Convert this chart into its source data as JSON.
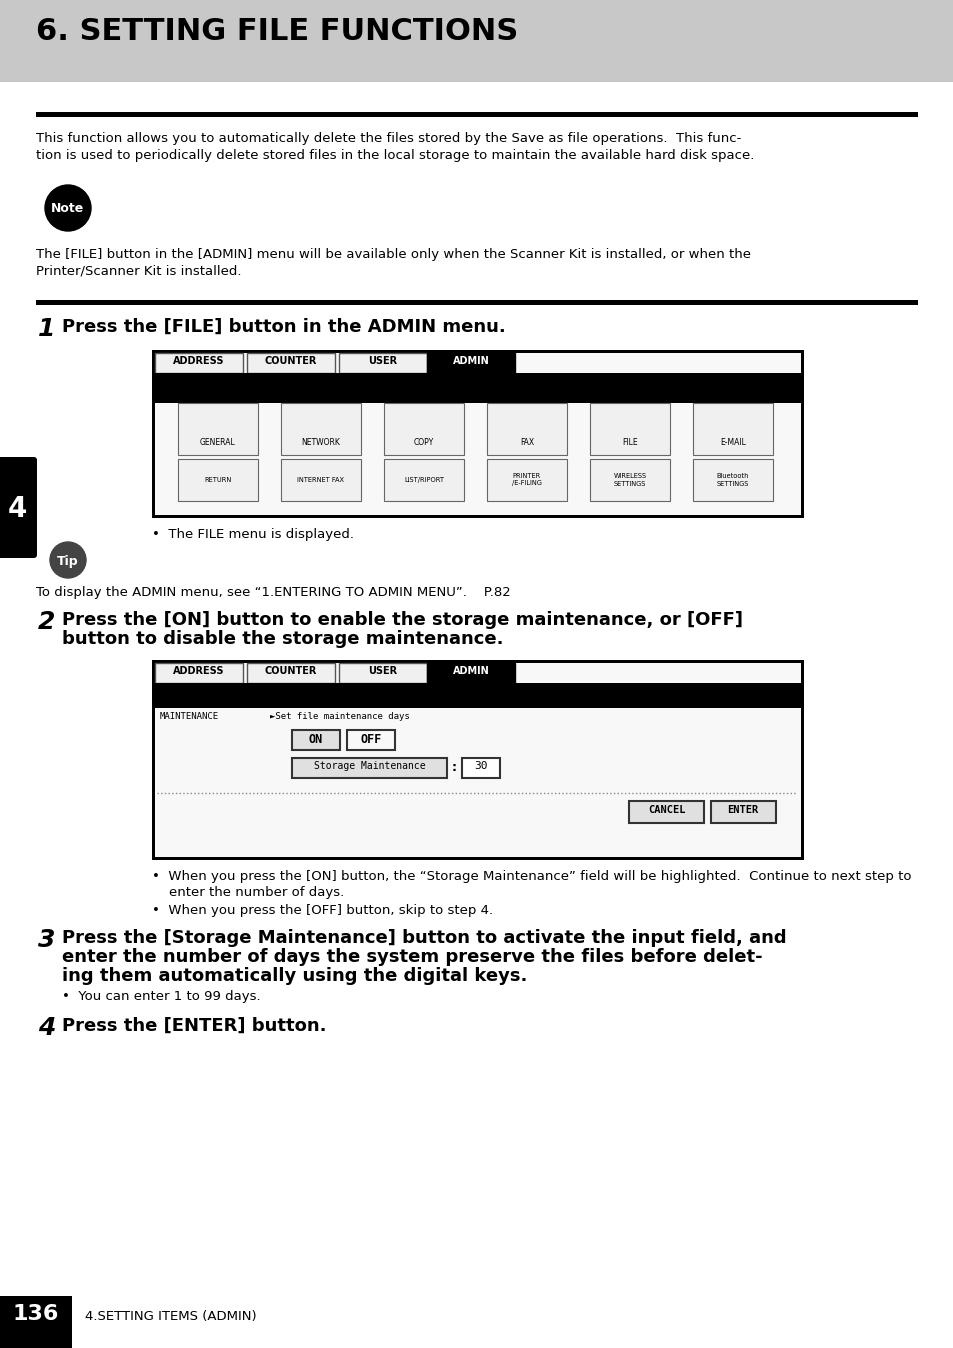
{
  "title": "6. SETTING FILE FUNCTIONS",
  "title_bg": "#c8c8c8",
  "body_bg": "#ffffff",
  "page_number": "136",
  "page_footer": "4.SETTING ITEMS (ADMIN)",
  "intro_line1": "This function allows you to automatically delete the files stored by the Save as file operations.  This func-",
  "intro_line2": "tion is used to periodically delete stored files in the local storage to maintain the available hard disk space.",
  "note_label": "Note",
  "note_line1": "The [FILE] button in the [ADMIN] menu will be available only when the Scanner Kit is installed, or when the",
  "note_line2": "Printer/Scanner Kit is installed.",
  "tip_label": "Tip",
  "step1_num": "1",
  "step1_heading": "Press the [FILE] button in the ADMIN menu.",
  "step1_bullet": "•  The FILE menu is displayed.",
  "tip_text": "To display the ADMIN menu, see “1.ENTERING TO ADMIN MENU”.    P.82",
  "step2_num": "2",
  "step2_line1": "Press the [ON] button to enable the storage maintenance, or [OFF]",
  "step2_line2": "button to disable the storage maintenance.",
  "screen2_maintenance": "MAINTENANCE",
  "screen2_arrow_text": "►Set file maintenance days",
  "screen2_on": "ON",
  "screen2_off": "OFF",
  "screen2_sm": "Storage Maintenance",
  "screen2_days": "30",
  "screen2_cancel": "CANCEL",
  "screen2_enter": "ENTER",
  "step2_bul1_l1": "•  When you press the [ON] button, the “Storage Maintenance” field will be highlighted.  Continue to next step to",
  "step2_bul1_l2": "    enter the number of days.",
  "step2_bul2": "•  When you press the [OFF] button, skip to step 4.",
  "step3_num": "3",
  "step3_l1": "Press the [Storage Maintenance] button to activate the input field, and",
  "step3_l2": "enter the number of days the system preserve the files before delet-",
  "step3_l3": "ing them automatically using the digital keys.",
  "step3_bul": "•  You can enter 1 to 99 days.",
  "step4_num": "4",
  "step4_heading": "Press the [ENTER] button.",
  "tab_names": [
    "ADDRESS",
    "COUNTER",
    "USER",
    "ADMIN"
  ],
  "screen1_row1": [
    "GENERAL",
    "NETWORK",
    "COPY",
    "FAX",
    "FILE",
    "E-MAIL"
  ],
  "screen1_row2": [
    "RETURN",
    "INTERNET FAX",
    "LIST/RIPORT",
    "PRINTER\n/E-FILING",
    "WIRELESS\nSETTINGS",
    "Bluetooth\nSETTINGS"
  ]
}
